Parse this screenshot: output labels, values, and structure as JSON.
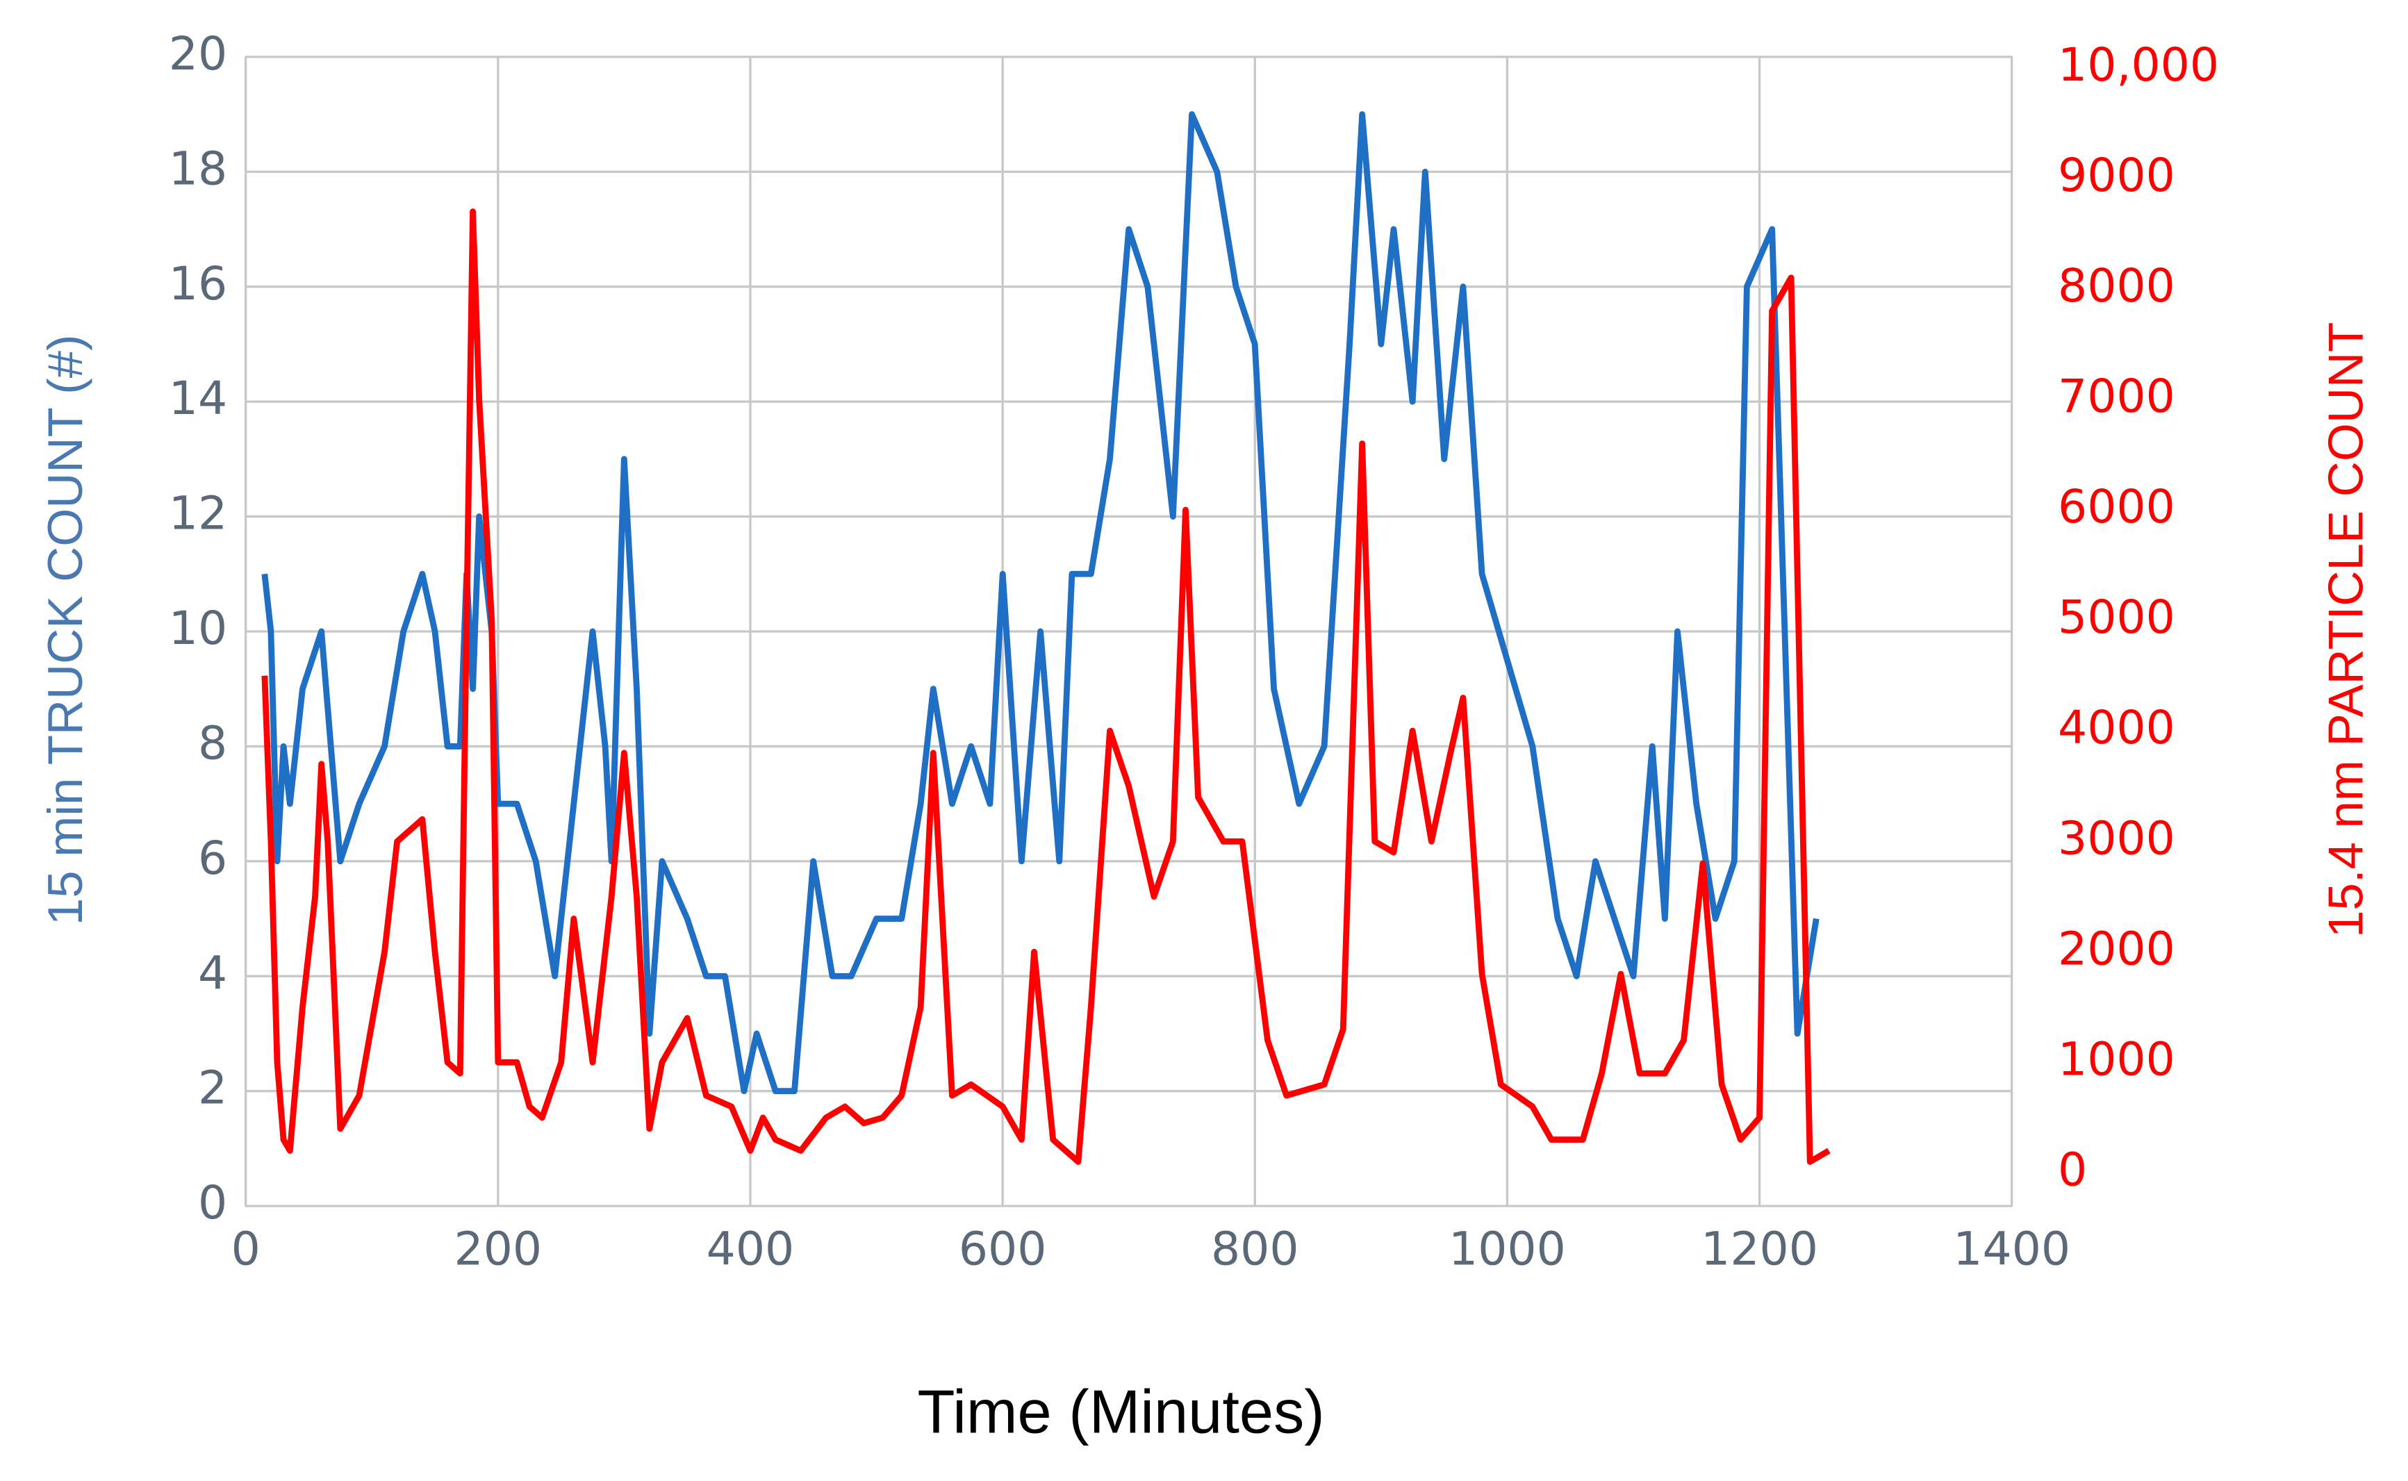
{
  "chart_data": {
    "type": "line",
    "xlabel": "Time (Minutes)",
    "ylabel": "15 min TRUCK COUNT (#)",
    "y2label": "15.4 nm PARTICLE COUNT",
    "xlim": [
      0,
      1400
    ],
    "xticks": [
      0,
      200,
      400,
      600,
      800,
      1000,
      1200,
      1400
    ],
    "ylim": [
      0,
      20
    ],
    "yticks": [
      0,
      2,
      4,
      6,
      8,
      10,
      12,
      14,
      16,
      18,
      20
    ],
    "y2lim": [
      -300,
      10100
    ],
    "y2ticks": [
      0,
      1000,
      2000,
      3000,
      4000,
      5000,
      6000,
      7000,
      8000,
      9000,
      {
        "value": 10000,
        "label": "10,000"
      }
    ],
    "grid": true,
    "series": [
      {
        "color": "#1f6fc4",
        "axis": "y",
        "x": [
          15,
          20,
          25,
          30,
          35,
          45,
          60,
          75,
          90,
          110,
          125,
          140,
          150,
          160,
          170,
          175,
          180,
          185,
          195,
          200,
          215,
          230,
          245,
          255,
          275,
          285,
          290,
          300,
          310,
          320,
          330,
          350,
          365,
          380,
          395,
          405,
          420,
          435,
          450,
          465,
          480,
          500,
          520,
          535,
          545,
          560,
          575,
          590,
          600,
          615,
          630,
          645,
          655,
          670,
          685,
          700,
          715,
          735,
          750,
          770,
          785,
          800,
          815,
          835,
          855,
          875,
          885,
          900,
          910,
          925,
          935,
          950,
          965,
          980,
          1020,
          1040,
          1055,
          1070,
          1100,
          1115,
          1125,
          1135,
          1150,
          1165,
          1180,
          1190,
          1210,
          1230,
          1245
        ],
        "values": [
          11,
          10,
          6,
          8,
          7,
          9,
          10,
          6,
          7,
          8,
          10,
          11,
          10,
          8,
          8,
          11,
          9,
          12,
          10,
          7,
          7,
          6,
          4,
          6,
          10,
          8,
          6,
          13,
          9,
          3,
          6,
          5,
          4,
          4,
          2,
          3,
          2,
          2,
          6,
          4,
          4,
          5,
          5,
          7,
          9,
          7,
          8,
          7,
          11,
          6,
          10,
          6,
          11,
          11,
          13,
          17,
          16,
          12,
          19,
          18,
          16,
          15,
          9,
          7,
          8,
          15,
          19,
          15,
          17,
          14,
          18,
          13,
          16,
          11,
          8,
          5,
          4,
          6,
          4,
          8,
          5,
          10,
          7,
          5,
          6,
          16,
          17,
          3,
          5
        ]
      },
      {
        "color": "#ff0000",
        "axis": "y2",
        "x": [
          15,
          20,
          25,
          30,
          35,
          45,
          55,
          60,
          65,
          75,
          90,
          110,
          120,
          140,
          150,
          160,
          170,
          175,
          180,
          185,
          195,
          200,
          215,
          225,
          235,
          250,
          260,
          275,
          290,
          300,
          310,
          320,
          330,
          350,
          365,
          385,
          400,
          410,
          420,
          440,
          460,
          475,
          490,
          505,
          520,
          535,
          545,
          560,
          575,
          600,
          615,
          625,
          640,
          660,
          670,
          685,
          700,
          720,
          735,
          745,
          755,
          775,
          790,
          810,
          825,
          855,
          870,
          885,
          895,
          910,
          925,
          940,
          955,
          965,
          980,
          995,
          1020,
          1035,
          1060,
          1075,
          1090,
          1105,
          1125,
          1140,
          1155,
          1170,
          1185,
          1200,
          1210,
          1225,
          1240,
          1255
        ],
        "values": [
          4500,
          3000,
          1000,
          300,
          200,
          1500,
          2500,
          3700,
          3000,
          400,
          700,
          2000,
          3000,
          3200,
          2000,
          1000,
          900,
          5000,
          8700,
          7000,
          5000,
          1000,
          1000,
          600,
          500,
          1000,
          2300,
          1000,
          2500,
          3800,
          2500,
          400,
          1000,
          1400,
          700,
          600,
          200,
          500,
          300,
          200,
          500,
          600,
          450,
          500,
          700,
          1500,
          3800,
          700,
          800,
          600,
          300,
          2000,
          300,
          100,
          1500,
          4000,
          3500,
          2500,
          3000,
          6000,
          3400,
          3000,
          3000,
          1200,
          700,
          800,
          1300,
          6600,
          3000,
          2900,
          4000,
          3000,
          3800,
          4300,
          1800,
          800,
          600,
          300,
          300,
          900,
          1800,
          900,
          900,
          1200,
          2800,
          800,
          300,
          500,
          7800,
          8100,
          100,
          200
        ]
      }
    ]
  }
}
